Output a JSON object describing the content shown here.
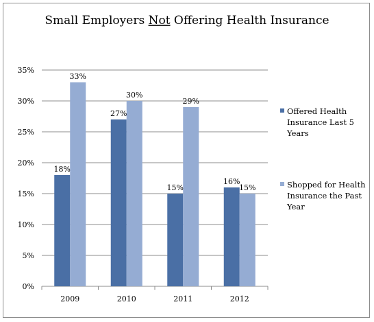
{
  "chart_data": {
    "type": "bar",
    "title": {
      "before": "Small Employers ",
      "emphasis": "Not",
      "after": " Offering Health Insurance"
    },
    "xlabel": "",
    "ylabel": "",
    "categories": [
      "2009",
      "2010",
      "2011",
      "2012"
    ],
    "series": [
      {
        "name": "Offered Health Insurance Last 5 Years",
        "legend_lines": [
          "Offered Health",
          "Insurance Last 5",
          "Years"
        ],
        "color": "#4a6fa5",
        "values": [
          18,
          27,
          15,
          16
        ],
        "labels": [
          "18%",
          "27%",
          "15%",
          "16%"
        ]
      },
      {
        "name": "Shopped for Health Insurance the Past Year",
        "legend_lines": [
          "Shopped for Health",
          "Insurance the Past",
          "Year"
        ],
        "color": "#95acd3",
        "values": [
          33,
          30,
          29,
          15
        ],
        "labels": [
          "33%",
          "30%",
          "29%",
          "15%"
        ]
      }
    ],
    "ylim": [
      0,
      35
    ],
    "yticks": [
      0,
      5,
      10,
      15,
      20,
      25,
      30,
      35
    ],
    "ytick_labels": [
      "0%",
      "5%",
      "10%",
      "15%",
      "20%",
      "25%",
      "30%",
      "35%"
    ],
    "grid": true,
    "gridline_color": "#8c8c8c",
    "legend_position": "right"
  }
}
